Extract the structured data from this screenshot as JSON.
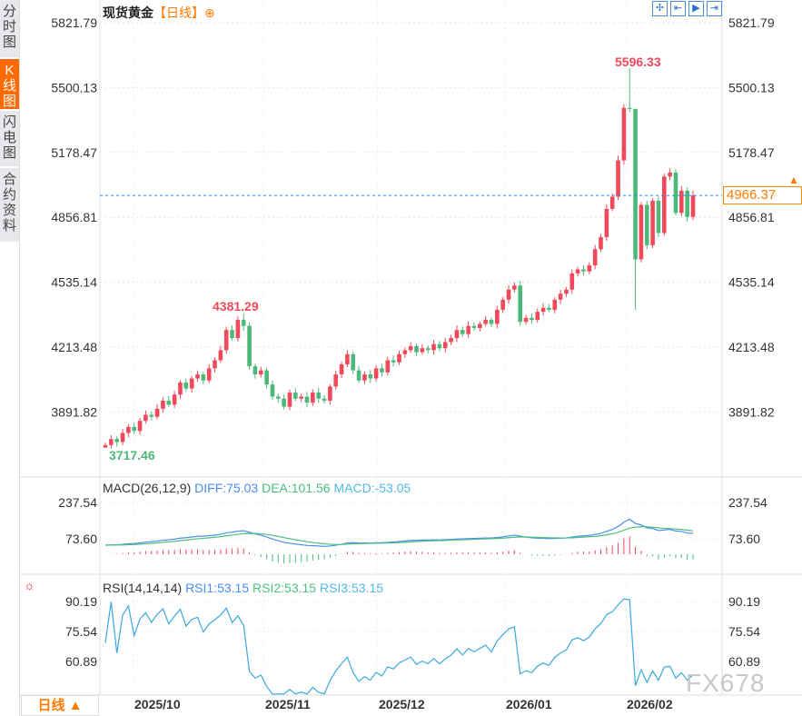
{
  "sidebar": {
    "tabs": [
      {
        "label": "分时图"
      },
      {
        "label": "K线图",
        "active": true
      },
      {
        "label": "闪电图"
      },
      {
        "label": "合约资料"
      }
    ]
  },
  "header": {
    "title": "现货黄金",
    "period_tag": "【日线】",
    "add_icon": "plus-circle-icon",
    "tools": [
      "crosshair-icon",
      "zoom-start-icon",
      "play-icon",
      "jump-end-icon"
    ]
  },
  "price_axis": {
    "labels": [
      "5821.79",
      "5500.13",
      "5178.47",
      "4856.81",
      "4535.14",
      "4213.48",
      "3891.82"
    ]
  },
  "annotations": {
    "high": "5596.33",
    "mid_high": "4381.29",
    "low": "3717.46",
    "last": "4966.37"
  },
  "colors": {
    "up": "#f04a5a",
    "down": "#4cb87a",
    "diff": "#4a8ef0",
    "dea": "#4cc080",
    "last_line": "#1e8fff",
    "rsi": "#3aa8e0"
  },
  "macd": {
    "label": "MACD(26,12,9)",
    "diff": "DIFF:75.03",
    "dea": "DEA:101.56",
    "macd": "MACD:-53.05",
    "axis": [
      "237.54",
      "73.60"
    ]
  },
  "rsi": {
    "label": "RSI(14,14,14)",
    "rsi1": "RSI1:53.15",
    "rsi2": "RSI2:53.15",
    "rsi3": "RSI3:53.15",
    "axis": [
      "90.19",
      "75.54",
      "60.89"
    ]
  },
  "footer": {
    "period": "日线 ▲",
    "dates": [
      "2025/10",
      "2025/11",
      "2025/12",
      "2026/01",
      "2026/02"
    ]
  },
  "watermark": "FX678",
  "chart_data": {
    "type": "candlestick",
    "ylim": [
      3717.46,
      5821.79
    ],
    "closes": [
      3730,
      3760,
      3745,
      3790,
      3820,
      3800,
      3850,
      3880,
      3870,
      3910,
      3950,
      3930,
      3980,
      4040,
      4010,
      4060,
      4080,
      4050,
      4110,
      4150,
      4200,
      4300,
      4260,
      4350,
      4320,
      4120,
      4080,
      4100,
      4030,
      3970,
      3960,
      3920,
      3990,
      3960,
      3970,
      3940,
      3990,
      3960,
      3950,
      4020,
      4080,
      4130,
      4180,
      4100,
      4050,
      4080,
      4060,
      4110,
      4090,
      4150,
      4140,
      4180,
      4200,
      4220,
      4190,
      4210,
      4200,
      4230,
      4210,
      4240,
      4260,
      4300,
      4280,
      4320,
      4310,
      4330,
      4350,
      4330,
      4400,
      4450,
      4500,
      4520,
      4340,
      4360,
      4350,
      4390,
      4410,
      4400,
      4450,
      4480,
      4500,
      4580,
      4600,
      4590,
      4620,
      4700,
      4760,
      4900,
      4960,
      5140,
      5400,
      5395,
      4650,
      4920,
      4720,
      4940,
      4780,
      5060,
      5080,
      4880,
      4990,
      4860,
      4966.37
    ],
    "first_open": 3717.46
  }
}
